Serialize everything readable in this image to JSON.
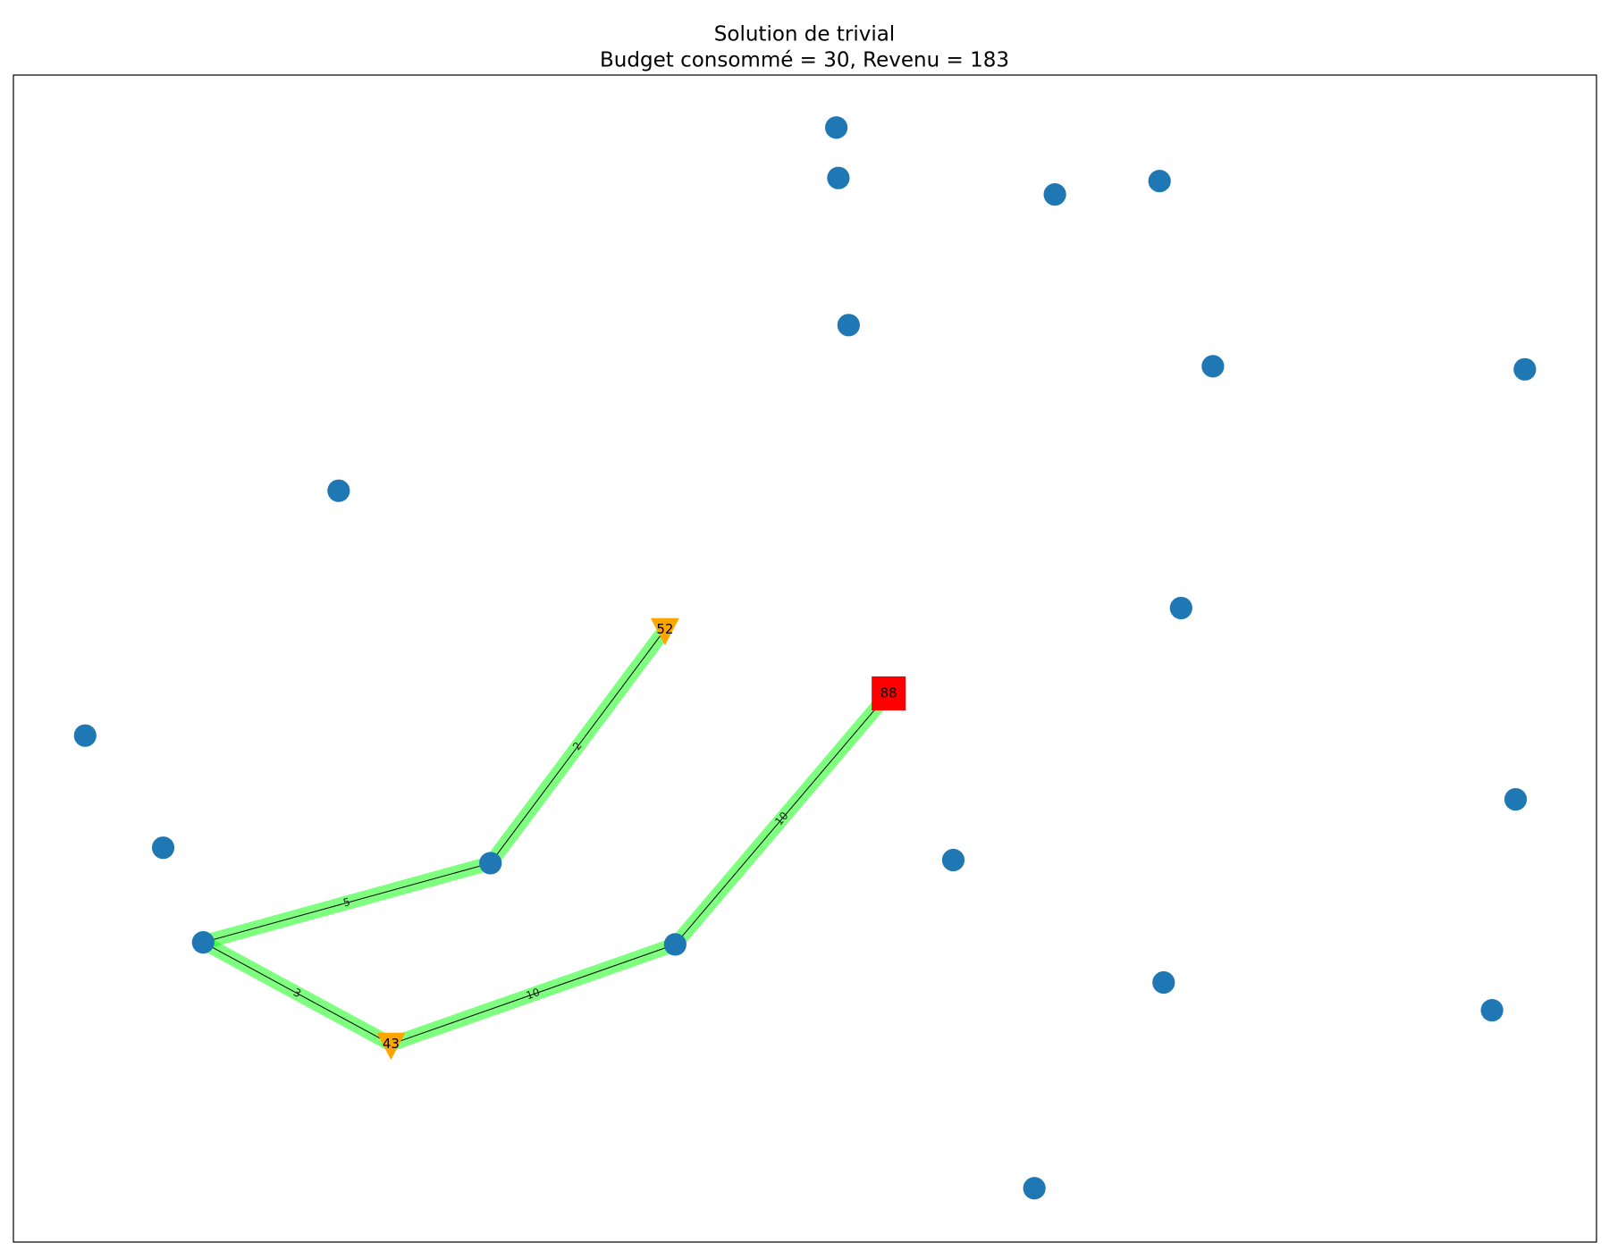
{
  "title": "Solution de trivial",
  "subtitle": "Budget consommé = 30, Revenu = 183",
  "node_color": "#1f77b4",
  "path_color": "#00ff00",
  "labeled_nodes": [
    {
      "label": 52,
      "shape": "triangle",
      "color": "#ffa500"
    },
    {
      "label": 43,
      "shape": "triangle",
      "color": "#ffa500"
    },
    {
      "label": 88,
      "shape": "square",
      "color": "#ff0000"
    }
  ],
  "path_edges": [
    {
      "label": 2
    },
    {
      "label": 5
    },
    {
      "label": 3
    },
    {
      "label": 10
    },
    {
      "label": 10
    }
  ]
}
